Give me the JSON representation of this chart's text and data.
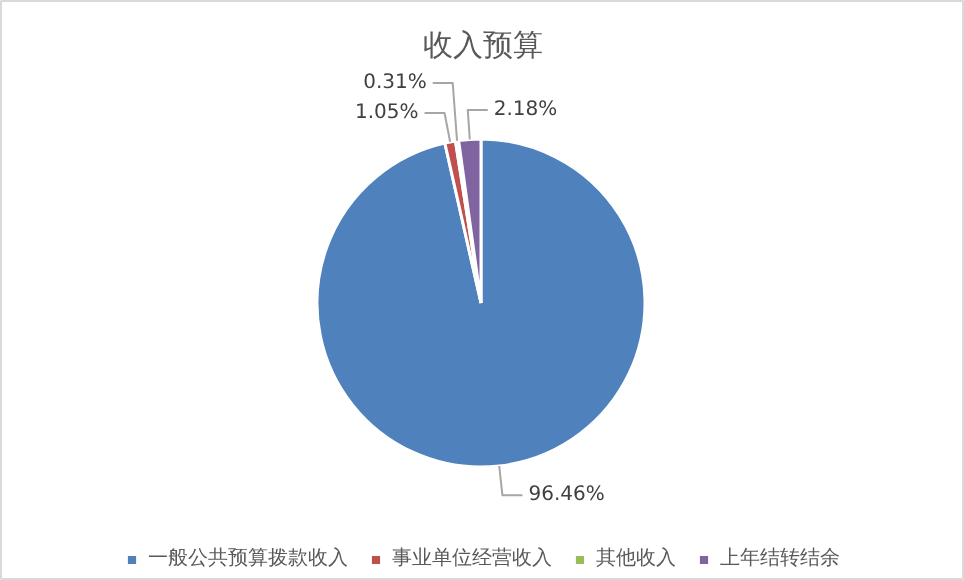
{
  "chart_data": {
    "type": "pie",
    "title": "收入预算",
    "categories": [
      "一般公共预算拨款收入",
      "事业单位经营收入",
      "其他收入",
      "上年结转结余"
    ],
    "values": [
      96.46,
      1.05,
      0.31,
      2.18
    ],
    "colors": [
      "#4f81bd",
      "#c0504d",
      "#9bbb59",
      "#8064a2"
    ],
    "value_labels": [
      "96.46%",
      "1.05%",
      "0.31%",
      "2.18%"
    ],
    "legend": "bottom"
  }
}
